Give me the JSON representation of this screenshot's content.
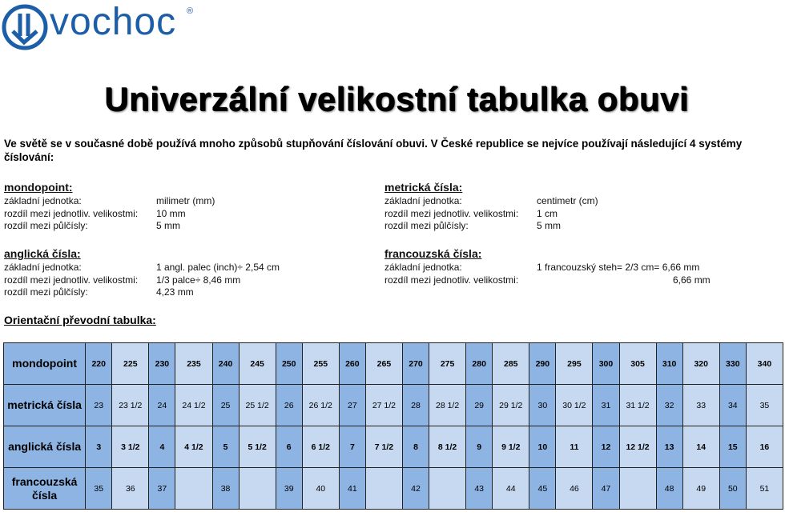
{
  "logo": {
    "name": "vochoc",
    "mark": "®"
  },
  "title": "Univerzální velikostní tabulka obuvi",
  "intro": "Ve světě se v současné době používá mnoho způsobů stupňování číslování obuvi. V České republice se nejvíce používají následující 4 systémy číslování:",
  "sections": [
    {
      "title": "mondopoint:",
      "rows": [
        [
          "základní jednotka:",
          "milimetr (mm)"
        ],
        [
          "rozdíl mezi jednotliv. velikostmi:",
          "10 mm"
        ],
        [
          "rozdíl mezi půlčísly:",
          "5 mm"
        ]
      ]
    },
    {
      "title": "metrická čísla:",
      "rows": [
        [
          "základní jednotka:",
          "centimetr (cm)"
        ],
        [
          "rozdíl mezi jednotliv. velikostmi:",
          "1 cm"
        ],
        [
          "rozdíl mezi půlčísly:",
          "5 mm"
        ]
      ]
    },
    {
      "title": "anglická čísla:",
      "rows": [
        [
          "základní jednotka:",
          "1 angl. palec (inch)÷  2,54 cm"
        ],
        [
          "rozdíl mezi jednotliv. velikostmi:",
          "1/3 palce÷  8,46 mm"
        ],
        [
          "rozdíl mezi půlčísly:",
          "4,23 mm"
        ]
      ]
    },
    {
      "title": "francouzská čísla:",
      "rows": [
        [
          "základní jednotka:",
          "1 francouzský steh= 2/3 cm= 6,66 mm"
        ],
        [
          "rozdíl mezi jednotliv. velikostmi:",
          "6,66 mm"
        ]
      ]
    }
  ],
  "table": {
    "title": "Orientační převodní tabulka:",
    "rows": [
      {
        "label": "mondopoint",
        "cells": [
          220,
          225,
          230,
          235,
          240,
          245,
          250,
          255,
          260,
          265,
          270,
          275,
          280,
          285,
          290,
          295,
          300,
          305,
          310,
          320,
          330,
          340
        ]
      },
      {
        "label": "metrická čísla",
        "cells": [
          "23",
          "23 1/2",
          "24",
          "24 1/2",
          "25",
          "25 1/2",
          "26",
          "26 1/2",
          "27",
          "27 1/2",
          "28",
          "28 1/2",
          "29",
          "29 1/2",
          "30",
          "30 1/2",
          "31",
          "31 1/2",
          "32",
          "33",
          "34",
          "35"
        ]
      },
      {
        "label": "anglická čísla",
        "cells": [
          "3",
          "3 1/2",
          "4",
          "4 1/2",
          "5",
          "5 1/2",
          "6",
          "6 1/2",
          "7",
          "7 1/2",
          "8",
          "8 1/2",
          "9",
          "9 1/2",
          "10",
          "11",
          "12",
          "12 1/2",
          "13",
          "14",
          "15",
          "16"
        ]
      },
      {
        "label": "francouzská čísla",
        "cells": [
          35,
          36,
          37,
          null,
          38,
          null,
          39,
          40,
          41,
          null,
          42,
          null,
          43,
          44,
          45,
          46,
          47,
          null,
          48,
          49,
          50,
          51
        ]
      }
    ]
  }
}
